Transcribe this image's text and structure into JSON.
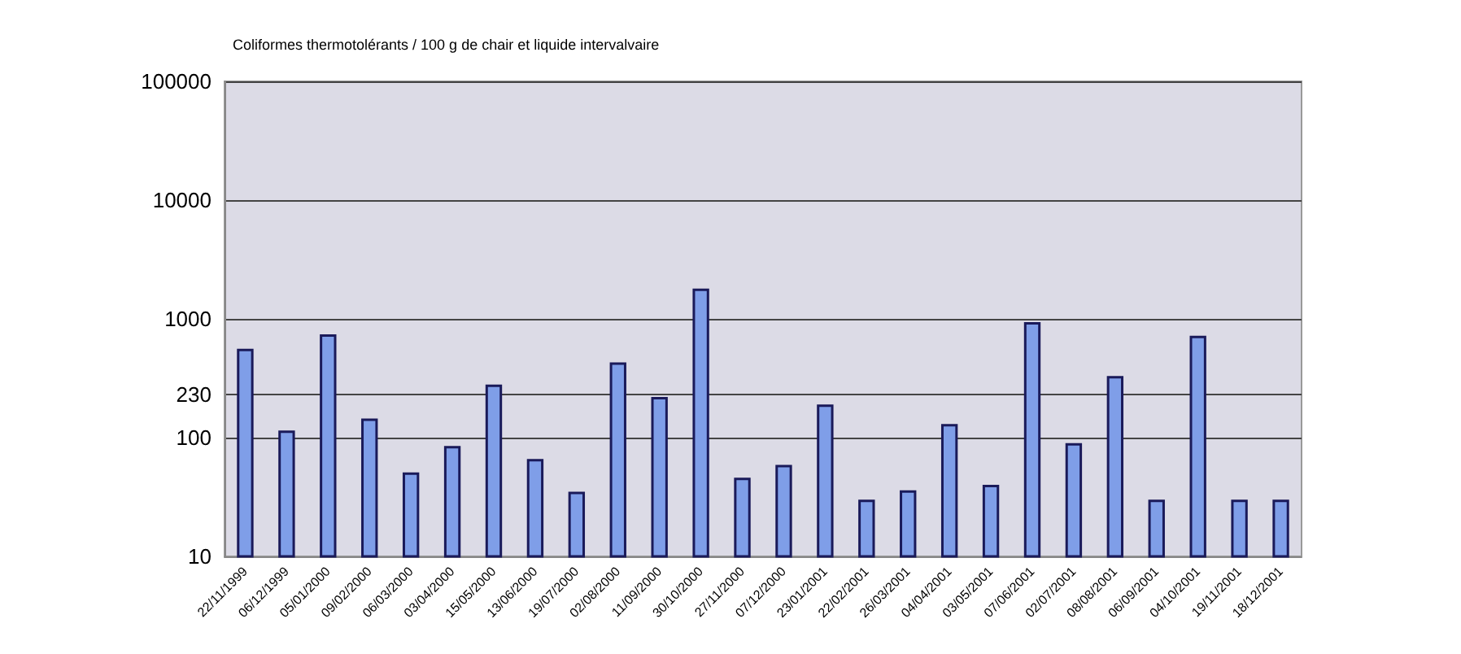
{
  "chart_data": {
    "type": "bar",
    "title": "Coliformes thermotolérants / 100 g de chair et liquide intervalvaire",
    "categories": [
      "22/11/1999",
      "06/12/1999",
      "05/01/2000",
      "09/02/2000",
      "06/03/2000",
      "03/04/2000",
      "15/05/2000",
      "13/06/2000",
      "19/07/2000",
      "02/08/2000",
      "11/09/2000",
      "30/10/2000",
      "27/11/2000",
      "07/12/2000",
      "23/01/2001",
      "22/02/2001",
      "26/03/2001",
      "04/04/2001",
      "03/05/2001",
      "07/06/2001",
      "02/07/2001",
      "08/08/2001",
      "06/09/2001",
      "04/10/2001",
      "19/11/2001",
      "18/12/2001"
    ],
    "values": [
      560,
      115,
      740,
      145,
      51,
      85,
      280,
      66,
      35,
      430,
      220,
      1800,
      46,
      59,
      190,
      30,
      36,
      130,
      40,
      940,
      90,
      330,
      30,
      720,
      30,
      30
    ],
    "color": "#7f9ee8",
    "log": true,
    "ylim": [
      10,
      100000
    ],
    "yticks": [
      10,
      100,
      230,
      1000,
      10000,
      100000
    ],
    "grid": "y"
  }
}
